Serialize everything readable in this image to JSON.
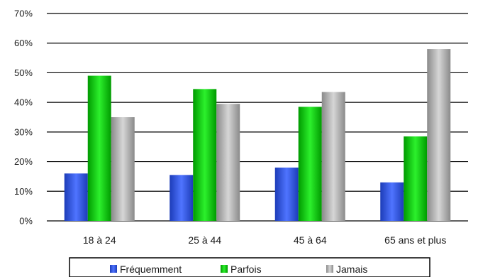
{
  "chart_data": {
    "type": "bar",
    "categories": [
      "18 à 24",
      "25 à 44",
      "45 à 64",
      "65 ans et plus"
    ],
    "series": [
      {
        "name": "Fréquemment",
        "values": [
          0.16,
          0.155,
          0.18,
          0.13
        ],
        "color": "#2f55e0"
      },
      {
        "name": "Parfois",
        "values": [
          0.49,
          0.445,
          0.385,
          0.285
        ],
        "color": "#13c413"
      },
      {
        "name": "Jamais",
        "values": [
          0.35,
          0.395,
          0.435,
          0.58
        ],
        "color": "#a9a9a9"
      }
    ],
    "ylim": [
      0,
      0.7
    ],
    "yticks": [
      "0%",
      "10%",
      "20%",
      "30%",
      "40%",
      "50%",
      "60%",
      "70%"
    ],
    "grid": true,
    "legend_position": "bottom"
  }
}
